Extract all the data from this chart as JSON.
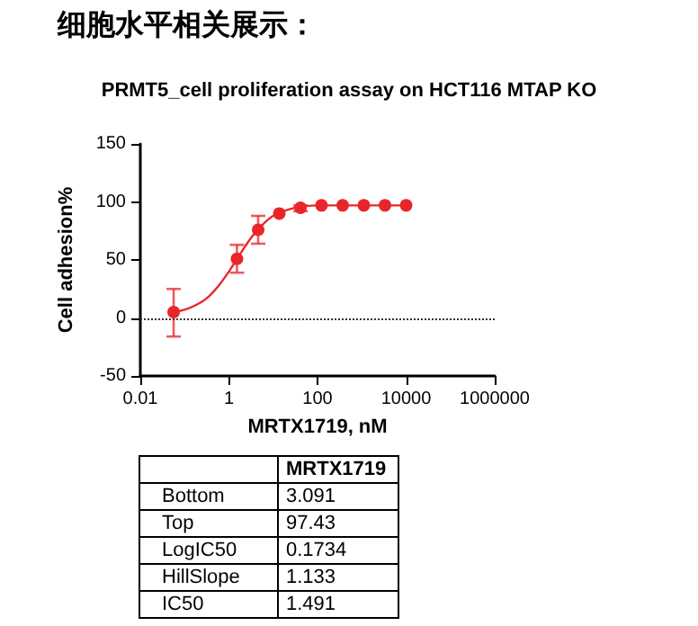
{
  "chart_data": {
    "type": "scatter",
    "title": "细胞水平相关展示：",
    "subtitle": "PRMT5_cell proliferation assay on HCT116 MTAP KO",
    "xlabel": "MRTX1719, nM",
    "ylabel": "Cell adhesion%",
    "series": [
      {
        "color": "#e8262a",
        "x": [
          0.0565,
          1.52,
          4.57,
          13.7,
          41.2,
          123,
          370,
          1111,
          3333,
          10000
        ],
        "values": [
          5,
          51,
          76,
          90,
          95,
          97,
          97,
          97,
          97,
          97
        ],
        "errors": [
          [
            -16,
            25
          ],
          [
            39,
            63
          ],
          [
            64,
            88
          ],
          null,
          [
            92,
            97
          ],
          null,
          null,
          null,
          null,
          null
        ]
      },
      {
        "type": "line",
        "color": "#e8262a",
        "marker": "none",
        "x": [
          0.0562,
          0.1,
          0.178,
          0.316,
          0.562,
          1,
          1.78,
          3.16,
          5.62,
          10,
          31.6,
          100,
          1000,
          10000
        ],
        "values": [
          5,
          7,
          11,
          17,
          27,
          40,
          55,
          69,
          80,
          88,
          95,
          97,
          97,
          97
        ]
      }
    ],
    "log": "x",
    "xlim": [
      0.01,
      1000000
    ],
    "xticks": [
      0.01,
      1,
      100,
      10000,
      1000000
    ],
    "ylim": [
      -50,
      150
    ],
    "yticks": [
      -50,
      0,
      50,
      100,
      150
    ],
    "grid": false,
    "marker": "circle",
    "ref_lines": [
      {
        "axis": "y",
        "value": 0,
        "line_style": "dotted",
        "color": "#333333"
      }
    ],
    "annotations": [
      "MRTX1719",
      "Bottom",
      "3.091",
      "Top",
      "97.43",
      "LogIC50",
      "0.1734",
      "HillSlope",
      "1.133",
      "IC50",
      "1.491"
    ]
  }
}
